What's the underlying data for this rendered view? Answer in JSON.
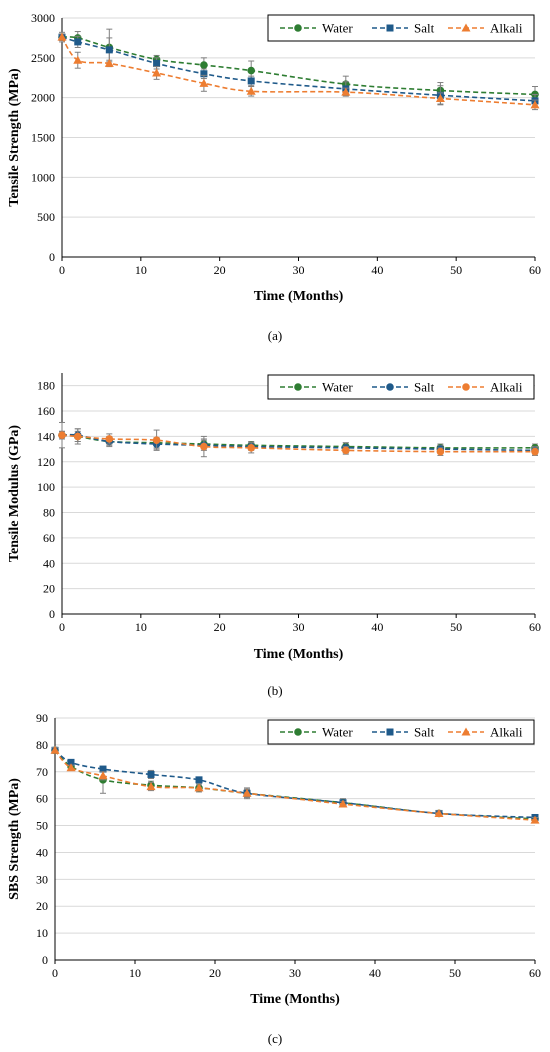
{
  "colors": {
    "Water": "#2e7d32",
    "Salt": "#1f5a8a",
    "Alkali": "#ed7d31",
    "errorbar": "#7f7f7f",
    "grid": "#d9d9d9"
  },
  "chart_data": [
    {
      "type": "line",
      "caption": "(a)",
      "xlabel": "Time (Months)",
      "ylabel": "Tensile Strength (MPa)",
      "xlim": [
        0,
        60
      ],
      "ylim": [
        0,
        3000
      ],
      "xticks": [
        0,
        10,
        20,
        30,
        40,
        50,
        60
      ],
      "yticks": [
        0,
        500,
        1000,
        1500,
        2000,
        2500,
        3000
      ],
      "grid": true,
      "legend": "top-right",
      "x": [
        0,
        2,
        6,
        12,
        18,
        24,
        36,
        48,
        60
      ],
      "series": [
        {
          "name": "Water",
          "marker": "circle",
          "values": [
            2760,
            2750,
            2630,
            2480,
            2410,
            2340,
            2170,
            2090,
            2040
          ],
          "error": [
            60,
            80,
            230,
            50,
            90,
            120,
            100,
            100,
            100
          ]
        },
        {
          "name": "Salt",
          "marker": "square",
          "values": [
            2760,
            2700,
            2600,
            2430,
            2300,
            2210,
            2110,
            2030,
            1960
          ],
          "error": [
            40,
            70,
            150,
            70,
            60,
            60,
            90,
            120,
            80
          ]
        },
        {
          "name": "Alkali",
          "marker": "triangle",
          "values": [
            2760,
            2470,
            2430,
            2310,
            2180,
            2080,
            2070,
            1990,
            1910
          ],
          "error": [
            40,
            100,
            40,
            80,
            100,
            60,
            50,
            70,
            60
          ]
        }
      ]
    },
    {
      "type": "line",
      "caption": "(b)",
      "xlabel": "Time (Months)",
      "ylabel": "Tensile Modulus (GPa)",
      "xlim": [
        0,
        60
      ],
      "ylim": [
        0,
        190
      ],
      "xticks": [
        0,
        10,
        20,
        30,
        40,
        50,
        60
      ],
      "yticks": [
        0,
        20,
        40,
        60,
        80,
        100,
        120,
        140,
        160,
        180
      ],
      "grid": true,
      "legend": "top-right",
      "x": [
        0,
        2,
        6,
        12,
        18,
        24,
        36,
        48,
        60
      ],
      "series": [
        {
          "name": "Water",
          "marker": "circle",
          "values": [
            141,
            140,
            136,
            135,
            134,
            133,
            132,
            131,
            131
          ],
          "error": [
            3,
            4,
            4,
            4,
            4,
            3,
            3,
            3,
            3
          ]
        },
        {
          "name": "Salt",
          "marker": "circle",
          "values": [
            141,
            141,
            136,
            134,
            133,
            132,
            131,
            130,
            129
          ],
          "error": [
            3,
            5,
            3,
            4,
            4,
            3,
            4,
            3,
            3
          ]
        },
        {
          "name": "Alkali",
          "marker": "circle",
          "values": [
            141,
            140,
            138,
            137,
            132,
            131,
            129,
            128,
            128
          ],
          "error": [
            10,
            6,
            4,
            8,
            8,
            4,
            3,
            3,
            3
          ]
        }
      ]
    },
    {
      "type": "line",
      "caption": "(c)",
      "xlabel": "Time (Months)",
      "ylabel": "SBS Strength (MPa)",
      "xlim": [
        0,
        60
      ],
      "ylim": [
        0,
        90
      ],
      "xticks": [
        0,
        10,
        20,
        30,
        40,
        50,
        60
      ],
      "yticks": [
        0,
        10,
        20,
        30,
        40,
        50,
        60,
        70,
        80,
        90
      ],
      "grid": true,
      "legend": "top-right",
      "x": [
        0,
        2,
        6,
        12,
        18,
        24,
        36,
        48,
        60
      ],
      "series": [
        {
          "name": "Water",
          "marker": "circle",
          "values": [
            78,
            72,
            67,
            65,
            64,
            62,
            58.5,
            54.5,
            52.5
          ],
          "error": [
            1,
            1.5,
            5,
            1.5,
            1.5,
            2,
            1.5,
            1,
            1
          ]
        },
        {
          "name": "Salt",
          "marker": "square",
          "values": [
            78,
            73.5,
            71,
            69,
            67,
            62,
            58.5,
            54.5,
            53
          ],
          "error": [
            1,
            1,
            1,
            1.5,
            1,
            1.5,
            1,
            1,
            1
          ]
        },
        {
          "name": "Alkali",
          "marker": "triangle",
          "values": [
            78,
            71.5,
            68.5,
            64.5,
            64,
            62,
            58,
            54.5,
            52
          ],
          "error": [
            1,
            1,
            1.5,
            1.5,
            1,
            1.5,
            1,
            1,
            1
          ]
        }
      ]
    }
  ]
}
